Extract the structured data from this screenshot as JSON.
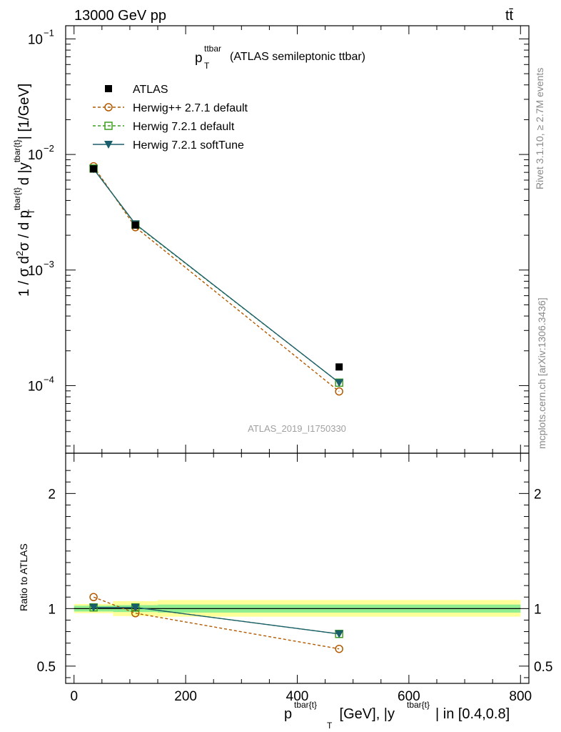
{
  "header": {
    "left": "13000 GeV pp",
    "right": "tt̄"
  },
  "side_labels": {
    "rivet": "Rivet 3.1.10, ≥ 2.7M events",
    "mcplots": "mcplots.cern.ch [arXiv:1306.3436]"
  },
  "plot_title": {
    "main": "p",
    "sub": "T",
    "sup": "ttbar",
    "rest": " (ATLAS semileptonic ttbar)"
  },
  "watermark": "ATLAS_2019_I1750330",
  "chart_data": [
    {
      "type": "line",
      "yscale": "log",
      "ylim": [
        2.6e-05,
        0.13
      ],
      "xlim": [
        -15,
        815
      ],
      "ylabel": "1 / σ d²σ / d p^{tbar{t}}_T d |y^{tbar{t}}| [1/GeV]",
      "yticks": [
        {
          "value": 0.1,
          "label": "10",
          "exp": "−1"
        },
        {
          "value": 0.01,
          "label": "10",
          "exp": "−2"
        },
        {
          "value": 0.001,
          "label": "10",
          "exp": "−3"
        },
        {
          "value": 0.0001,
          "label": "10",
          "exp": "−4"
        }
      ],
      "x": [
        35,
        110,
        475
      ],
      "data_series": {
        "name": "ATLAS",
        "y": [
          0.0075,
          0.00245,
          0.000145
        ],
        "bins": [
          [
            0,
            70
          ],
          [
            70,
            150
          ],
          [
            150,
            800
          ]
        ]
      },
      "series": [
        {
          "name": "Herwig++ 2.7.1 default",
          "color": "#b35900",
          "dash": true,
          "marker": "circle",
          "y": [
            0.0079,
            0.00235,
            8.9e-05
          ]
        },
        {
          "name": "Herwig 7.2.1 default",
          "color": "#3d9e1e",
          "dash": true,
          "marker": "square",
          "y": [
            0.00755,
            0.00248,
            0.000106
          ]
        },
        {
          "name": "Herwig 7.2.1 softTune",
          "color": "#1b5e6b",
          "dash": false,
          "marker": "triangle",
          "y": [
            0.0075,
            0.0025,
            0.000106
          ]
        }
      ],
      "legend_position": "top-left"
    },
    {
      "type": "line",
      "ylim": [
        0.35,
        2.35
      ],
      "xlim": [
        -15,
        815
      ],
      "ylabel": "Ratio to ATLAS",
      "xlabel": {
        "p": "p",
        "sup1": "tbar{t}",
        "sub": "T",
        "rest": " [GeV], |y",
        "sup2": "tbar{t}",
        "tail": "| in [0.4,0.8]"
      },
      "xticks": [
        0,
        200,
        400,
        600,
        800
      ],
      "yticks": [
        {
          "value": 0.5,
          "label": "0.5"
        },
        {
          "value": 1,
          "label": "1"
        },
        {
          "value": 2,
          "label": "2"
        }
      ],
      "bands": [
        {
          "x0": 0,
          "x1": 70,
          "stat": [
            0.975,
            1.025
          ],
          "total": [
            0.96,
            1.04
          ]
        },
        {
          "x0": 70,
          "x1": 150,
          "stat": [
            0.97,
            1.03
          ],
          "total": [
            0.935,
            1.065
          ]
        },
        {
          "x0": 150,
          "x1": 800,
          "stat": [
            0.965,
            1.035
          ],
          "total": [
            0.93,
            1.075
          ]
        }
      ],
      "x": [
        35,
        110,
        475
      ],
      "series": [
        {
          "name": "Herwig++ 2.7.1 default",
          "y": [
            1.1,
            0.96,
            0.65
          ]
        },
        {
          "name": "Herwig 7.2.1 default",
          "y": [
            1.01,
            1.01,
            0.78
          ]
        },
        {
          "name": "Herwig 7.2.1 softTune",
          "y": [
            1.01,
            1.01,
            0.78
          ]
        }
      ]
    }
  ]
}
